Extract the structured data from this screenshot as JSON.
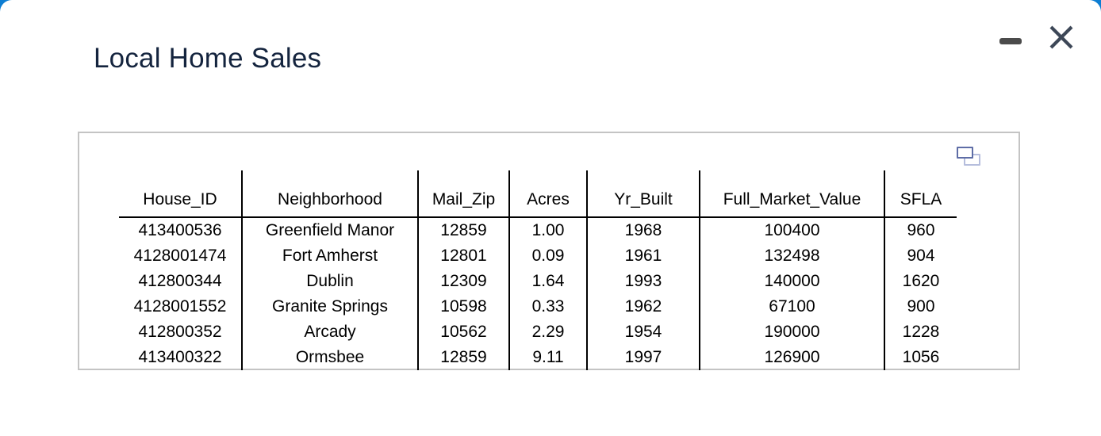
{
  "window": {
    "title": "Local Home Sales",
    "minimize_label": "Minimize",
    "close_label": "Close",
    "duplicate_label": "Open in new window"
  },
  "theme": {
    "background_blue": "#0d7ed3",
    "title_color": "#14243e",
    "minimize_icon_color": "#4b4b4b",
    "close_icon_color": "#3d4757",
    "duplicate_icon_front": "#5e6da6",
    "duplicate_icon_back": "#b6bedd",
    "panel_border_color": "#c4c4c4",
    "table_rule_color": "#000000"
  },
  "table": {
    "columns": [
      "House_ID",
      "Neighborhood",
      "Mail_Zip",
      "Acres",
      "Yr_Built",
      "Full_Market_Value",
      "SFLA"
    ],
    "rows": [
      [
        "413400536",
        "Greenfield Manor",
        "12859",
        "1.00",
        "1968",
        "100400",
        "960"
      ],
      [
        "4128001474",
        "Fort Amherst",
        "12801",
        "0.09",
        "1961",
        "132498",
        "904"
      ],
      [
        "412800344",
        "Dublin",
        "12309",
        "1.64",
        "1993",
        "140000",
        "1620"
      ],
      [
        "4128001552",
        "Granite Springs",
        "10598",
        "0.33",
        "1962",
        "67100",
        "900"
      ],
      [
        "412800352",
        "Arcady",
        "10562",
        "2.29",
        "1954",
        "190000",
        "1228"
      ],
      [
        "413400322",
        "Ormsbee",
        "12859",
        "9.11",
        "1997",
        "126900",
        "1056"
      ]
    ]
  }
}
